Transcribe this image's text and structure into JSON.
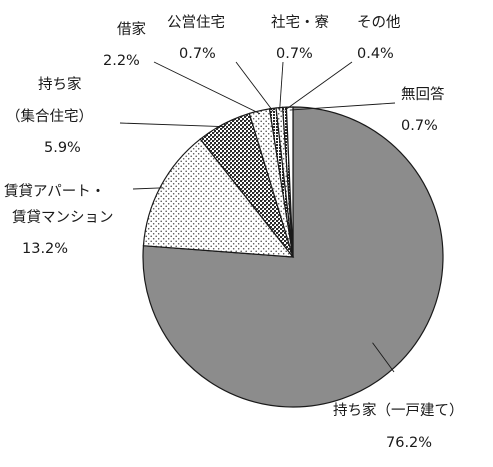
{
  "chart_data": {
    "type": "pie",
    "start": "12 o'clock",
    "direction": "clockwise",
    "slices": [
      {
        "label": "持ち家（一戸建て）",
        "value": 76.2,
        "value_text": "76.2%",
        "fill": "gray"
      },
      {
        "label": "賃貸アパート・賃貸マンション",
        "value": 13.2,
        "value_text": "13.2%",
        "fill": "light-dots"
      },
      {
        "label": "持ち家（集合住宅）",
        "value": 5.9,
        "value_text": "5.9%",
        "fill": "dark-crosshatch"
      },
      {
        "label": "借家",
        "value": 2.2,
        "value_text": "2.2%",
        "fill": "light-dots"
      },
      {
        "label": "公営住宅",
        "value": 0.7,
        "value_text": "0.7%",
        "fill": "dark-grid"
      },
      {
        "label": "社宅・寮",
        "value": 0.7,
        "value_text": "0.7%",
        "fill": "light-dots"
      },
      {
        "label": "その他",
        "value": 0.4,
        "value_text": "0.4%",
        "fill": "dark-grid"
      },
      {
        "label": "無回答",
        "value": 0.7,
        "value_text": "0.7%",
        "fill": "white"
      }
    ],
    "label_lines": {
      "own_house": [
        "持ち家（一戸建て）",
        "76.2%"
      ],
      "rental": [
        "賃貸アパート・",
        "賃貸マンション",
        "13.2%"
      ],
      "own_apartment": [
        "持ち家",
        "（集合住宅）",
        "5.9%"
      ],
      "rented_house": [
        "借家",
        "2.2%"
      ],
      "public_housing": [
        "公営住宅",
        "0.7%"
      ],
      "company_housing": [
        "社宅・寮",
        "0.7%"
      ],
      "other": [
        "その他",
        "0.4%"
      ],
      "no_answer": [
        "無回答",
        "0.7%"
      ]
    },
    "colors": {
      "gray": "#8c8c8c",
      "stroke": "#1a1a1a",
      "dots": "#4a4a4a",
      "dark": "#2a2a2a"
    }
  }
}
